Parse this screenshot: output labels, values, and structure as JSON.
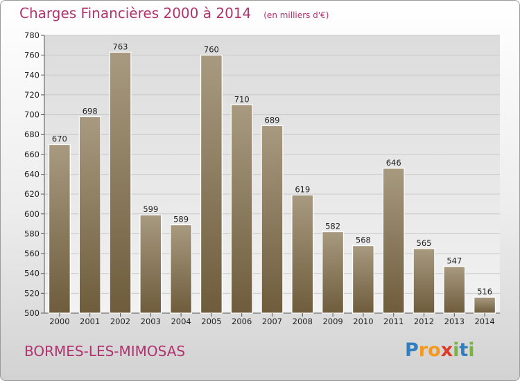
{
  "header": {
    "title": "Charges Financières 2000 à 2014",
    "unit": "(en milliers d'€)"
  },
  "footer": {
    "commune": "BORMES-LES-MIMOSAS",
    "brand": "Proxiti"
  },
  "colors": {
    "title": "#b0336f",
    "bar_top": "#a89a80",
    "bar_bottom": "#6e5c3c",
    "grid": "#c8c8c8"
  },
  "chart_data": {
    "type": "bar",
    "title": "Charges Financières 2000 à 2014",
    "subtitle": "(en milliers d'€)",
    "categories": [
      "2000",
      "2001",
      "2002",
      "2003",
      "2004",
      "2005",
      "2006",
      "2007",
      "2008",
      "2009",
      "2010",
      "2011",
      "2012",
      "2013",
      "2014"
    ],
    "values": [
      670,
      698,
      763,
      599,
      589,
      760,
      710,
      689,
      619,
      582,
      568,
      646,
      565,
      547,
      516
    ],
    "ylim": [
      500,
      780
    ],
    "yticks": [
      500,
      520,
      540,
      560,
      580,
      600,
      620,
      640,
      660,
      680,
      700,
      720,
      740,
      760,
      780
    ],
    "grid": true,
    "data_labels": true
  }
}
